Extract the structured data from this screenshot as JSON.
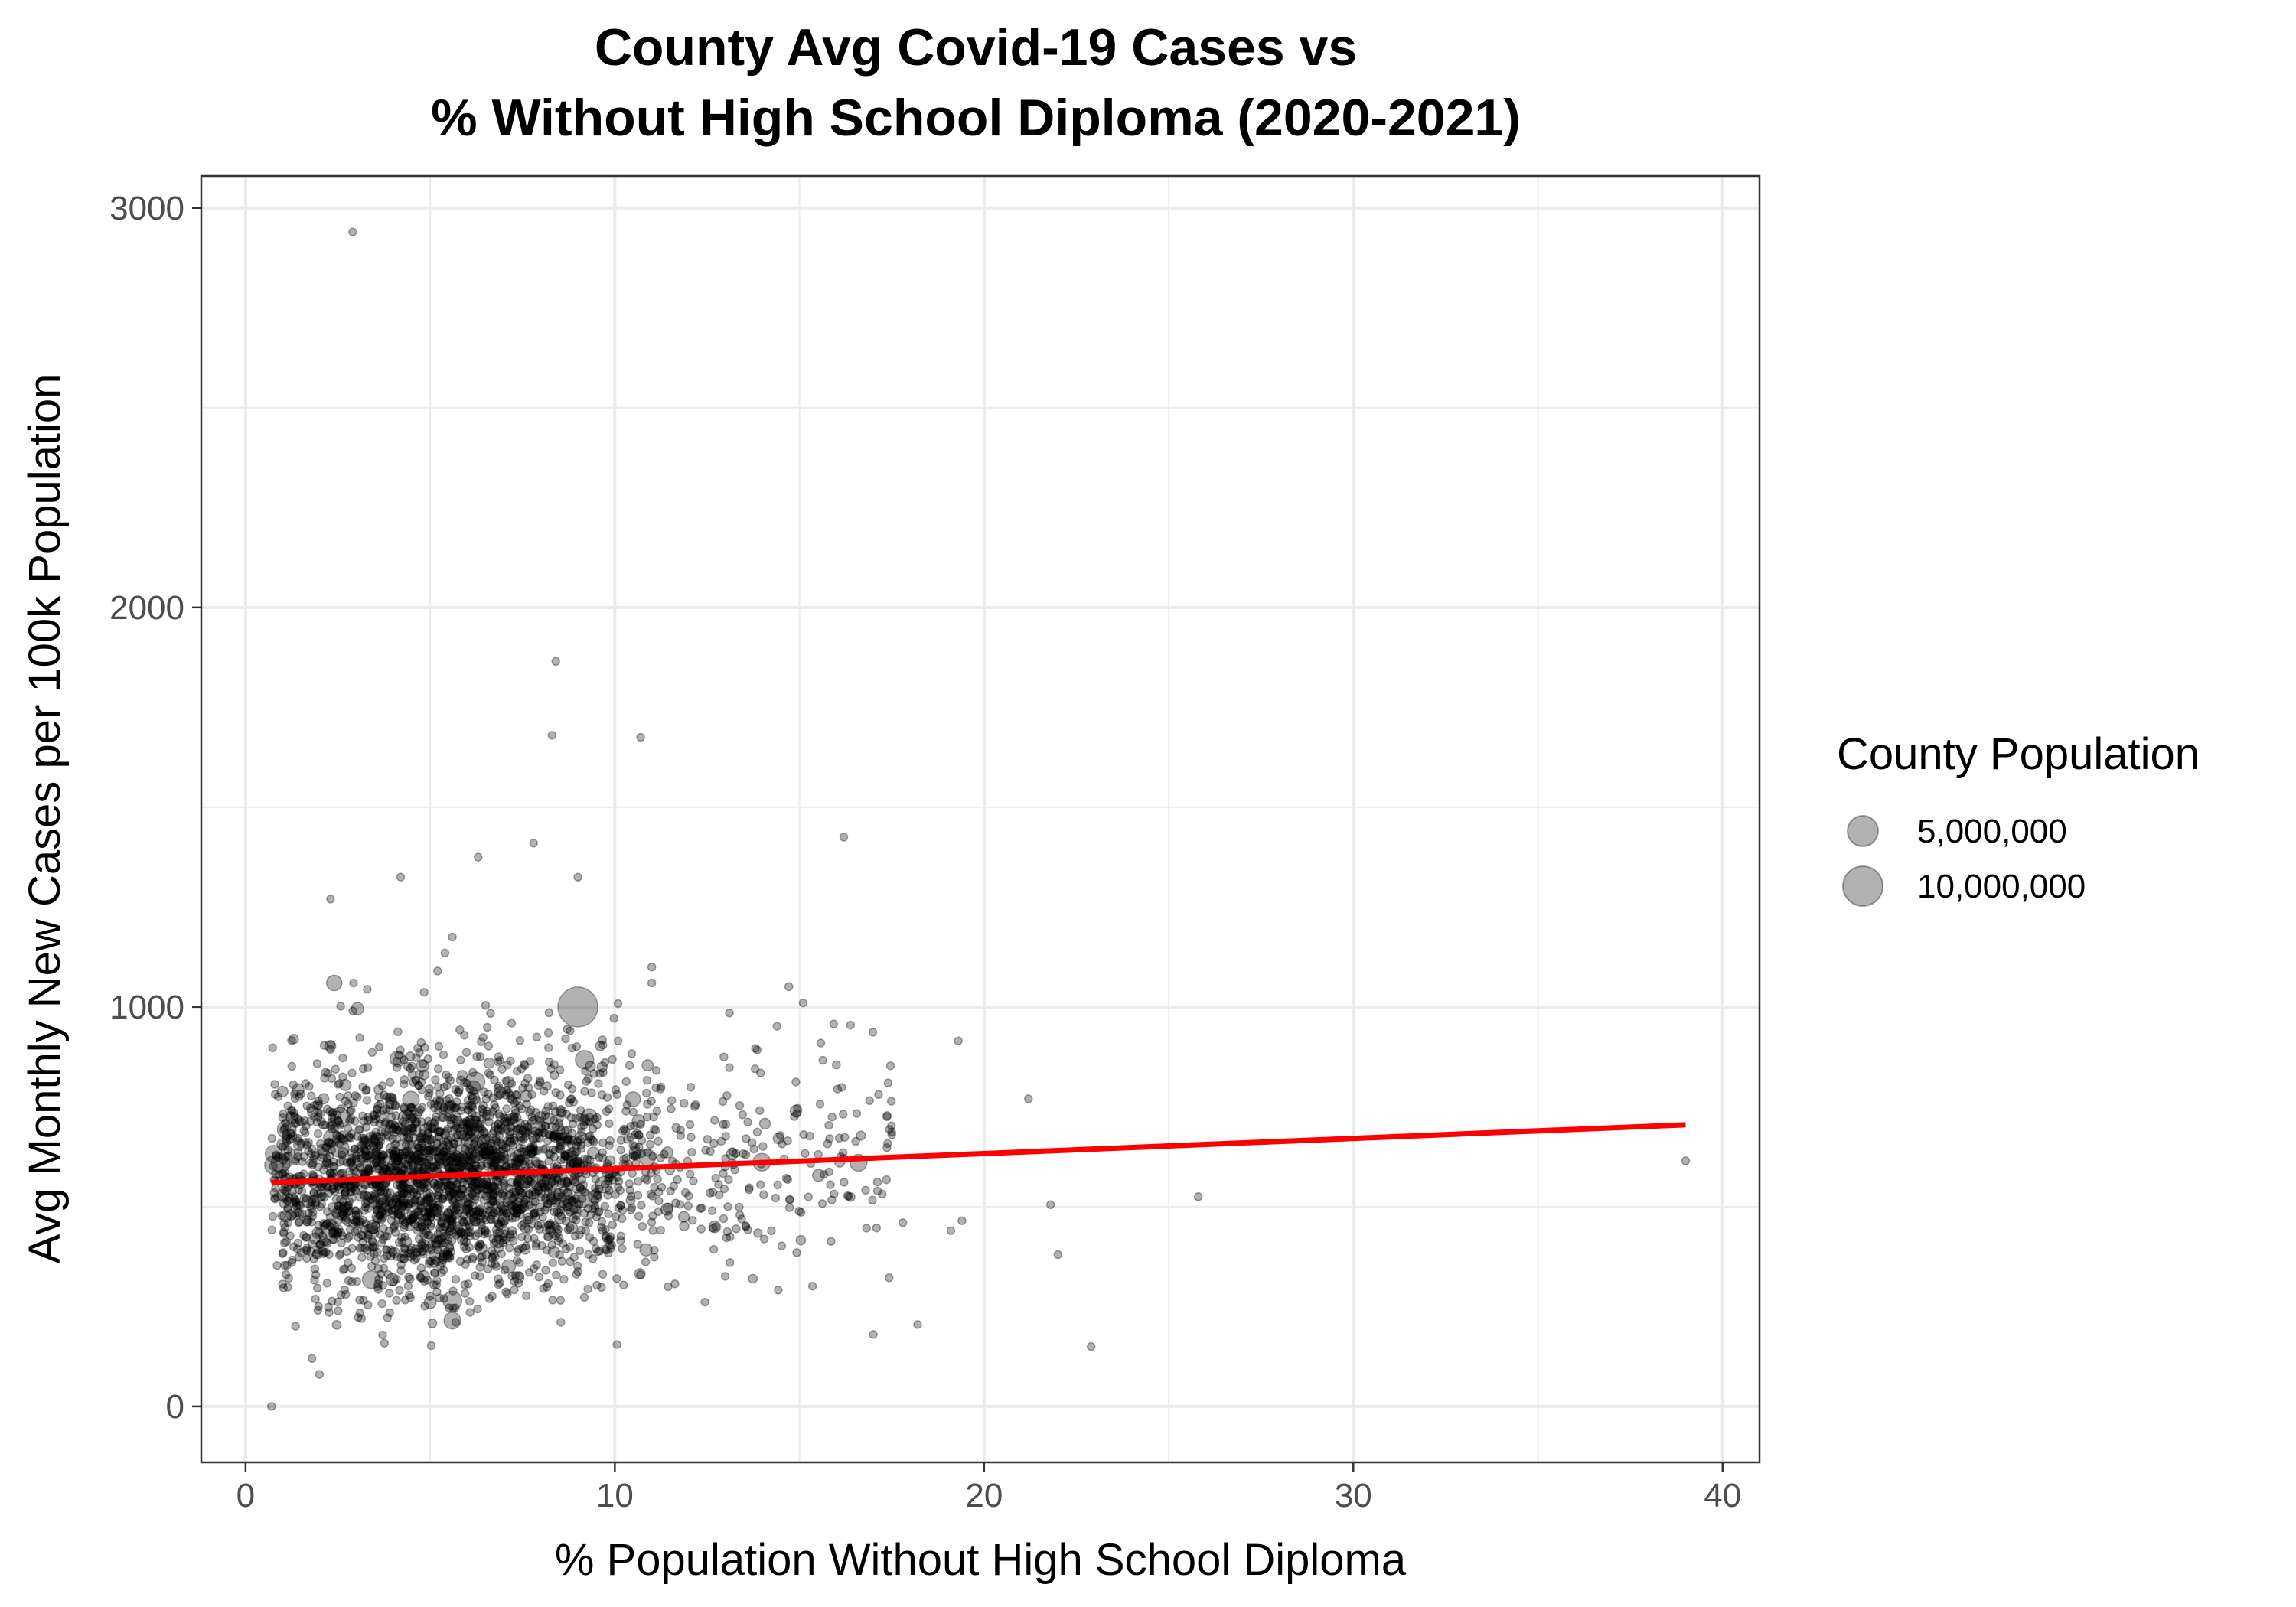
{
  "chart_data": {
    "type": "scatter",
    "title_lines": [
      "County Avg Covid-19 Cases vs",
      "% Without High School Diploma (2020-2021)"
    ],
    "xlabel": "% Population Without High School Diploma",
    "ylabel": "Avg Monthly New Cases per 100k Population",
    "xlim": [
      -1.2,
      41
    ],
    "ylim": [
      -140,
      3080
    ],
    "x_ticks": [
      0,
      10,
      20,
      30,
      40
    ],
    "x_tick_labels": [
      "0",
      "10",
      "20",
      "30",
      "40"
    ],
    "y_ticks": [
      0,
      1000,
      2000,
      3000
    ],
    "y_tick_labels": [
      "0",
      "1000",
      "2000",
      "3000"
    ],
    "grid": true,
    "legend": {
      "title": "County Population",
      "position": "right",
      "entries": [
        {
          "label": "5,000,000",
          "population": 5000000
        },
        {
          "label": "10,000,000",
          "population": 10000000
        }
      ]
    },
    "point_color": "#000000",
    "point_alpha": 0.3,
    "trend_line": {
      "color": "#ff0000",
      "x": [
        0.7,
        39.0
      ],
      "y": [
        560,
        705
      ]
    },
    "bulk_cluster": {
      "approx_count": 3000,
      "x_center": 5.5,
      "y_center": 590,
      "x_range": [
        0.7,
        18
      ],
      "y_range": [
        150,
        1100
      ]
    },
    "points": [
      {
        "x": 2.9,
        "y": 2940,
        "pop": 100000
      },
      {
        "x": 8.4,
        "y": 1865,
        "pop": 100000
      },
      {
        "x": 8.3,
        "y": 1680,
        "pop": 100000
      },
      {
        "x": 10.7,
        "y": 1675,
        "pop": 100000
      },
      {
        "x": 16.2,
        "y": 1425,
        "pop": 100000
      },
      {
        "x": 7.8,
        "y": 1410,
        "pop": 100000
      },
      {
        "x": 6.3,
        "y": 1375,
        "pop": 100000
      },
      {
        "x": 9.0,
        "y": 1325,
        "pop": 100000
      },
      {
        "x": 4.2,
        "y": 1325,
        "pop": 100000
      },
      {
        "x": 2.3,
        "y": 1270,
        "pop": 150000
      },
      {
        "x": 5.6,
        "y": 1175,
        "pop": 150000
      },
      {
        "x": 5.4,
        "y": 1135,
        "pop": 150000
      },
      {
        "x": 11.0,
        "y": 1100,
        "pop": 100000
      },
      {
        "x": 5.2,
        "y": 1090,
        "pop": 100000
      },
      {
        "x": 2.4,
        "y": 1060,
        "pop": 1500000
      },
      {
        "x": 11.0,
        "y": 1060,
        "pop": 100000
      },
      {
        "x": 9.0,
        "y": 1000,
        "pop": 10000000
      },
      {
        "x": 15.1,
        "y": 1010,
        "pop": 100000
      },
      {
        "x": 19.3,
        "y": 915,
        "pop": 150000
      },
      {
        "x": 21.2,
        "y": 770,
        "pop": 150000
      },
      {
        "x": 25.8,
        "y": 525,
        "pop": 100000
      },
      {
        "x": 21.8,
        "y": 505,
        "pop": 100000
      },
      {
        "x": 22.0,
        "y": 380,
        "pop": 150000
      },
      {
        "x": 22.9,
        "y": 150,
        "pop": 100000
      },
      {
        "x": 39.0,
        "y": 615,
        "pop": 100000
      },
      {
        "x": 19.4,
        "y": 465,
        "pop": 150000
      },
      {
        "x": 19.1,
        "y": 440,
        "pop": 100000
      },
      {
        "x": 17.5,
        "y": 680,
        "pop": 150000
      },
      {
        "x": 17.4,
        "y": 810,
        "pop": 100000
      },
      {
        "x": 17.8,
        "y": 460,
        "pop": 100000
      },
      {
        "x": 18.2,
        "y": 205,
        "pop": 100000
      },
      {
        "x": 17.0,
        "y": 180,
        "pop": 100000
      },
      {
        "x": 16.6,
        "y": 610,
        "pop": 1800000
      },
      {
        "x": 16.0,
        "y": 855,
        "pop": 400000
      },
      {
        "x": 0.7,
        "y": 0,
        "pop": 100000
      },
      {
        "x": 2.0,
        "y": 80,
        "pop": 100000
      },
      {
        "x": 1.8,
        "y": 120,
        "pop": 100000
      },
      {
        "x": 5.6,
        "y": 215,
        "pop": 1800000
      },
      {
        "x": 5.6,
        "y": 265,
        "pop": 2200000
      },
      {
        "x": 5.0,
        "y": 260,
        "pop": 900000
      }
    ]
  }
}
